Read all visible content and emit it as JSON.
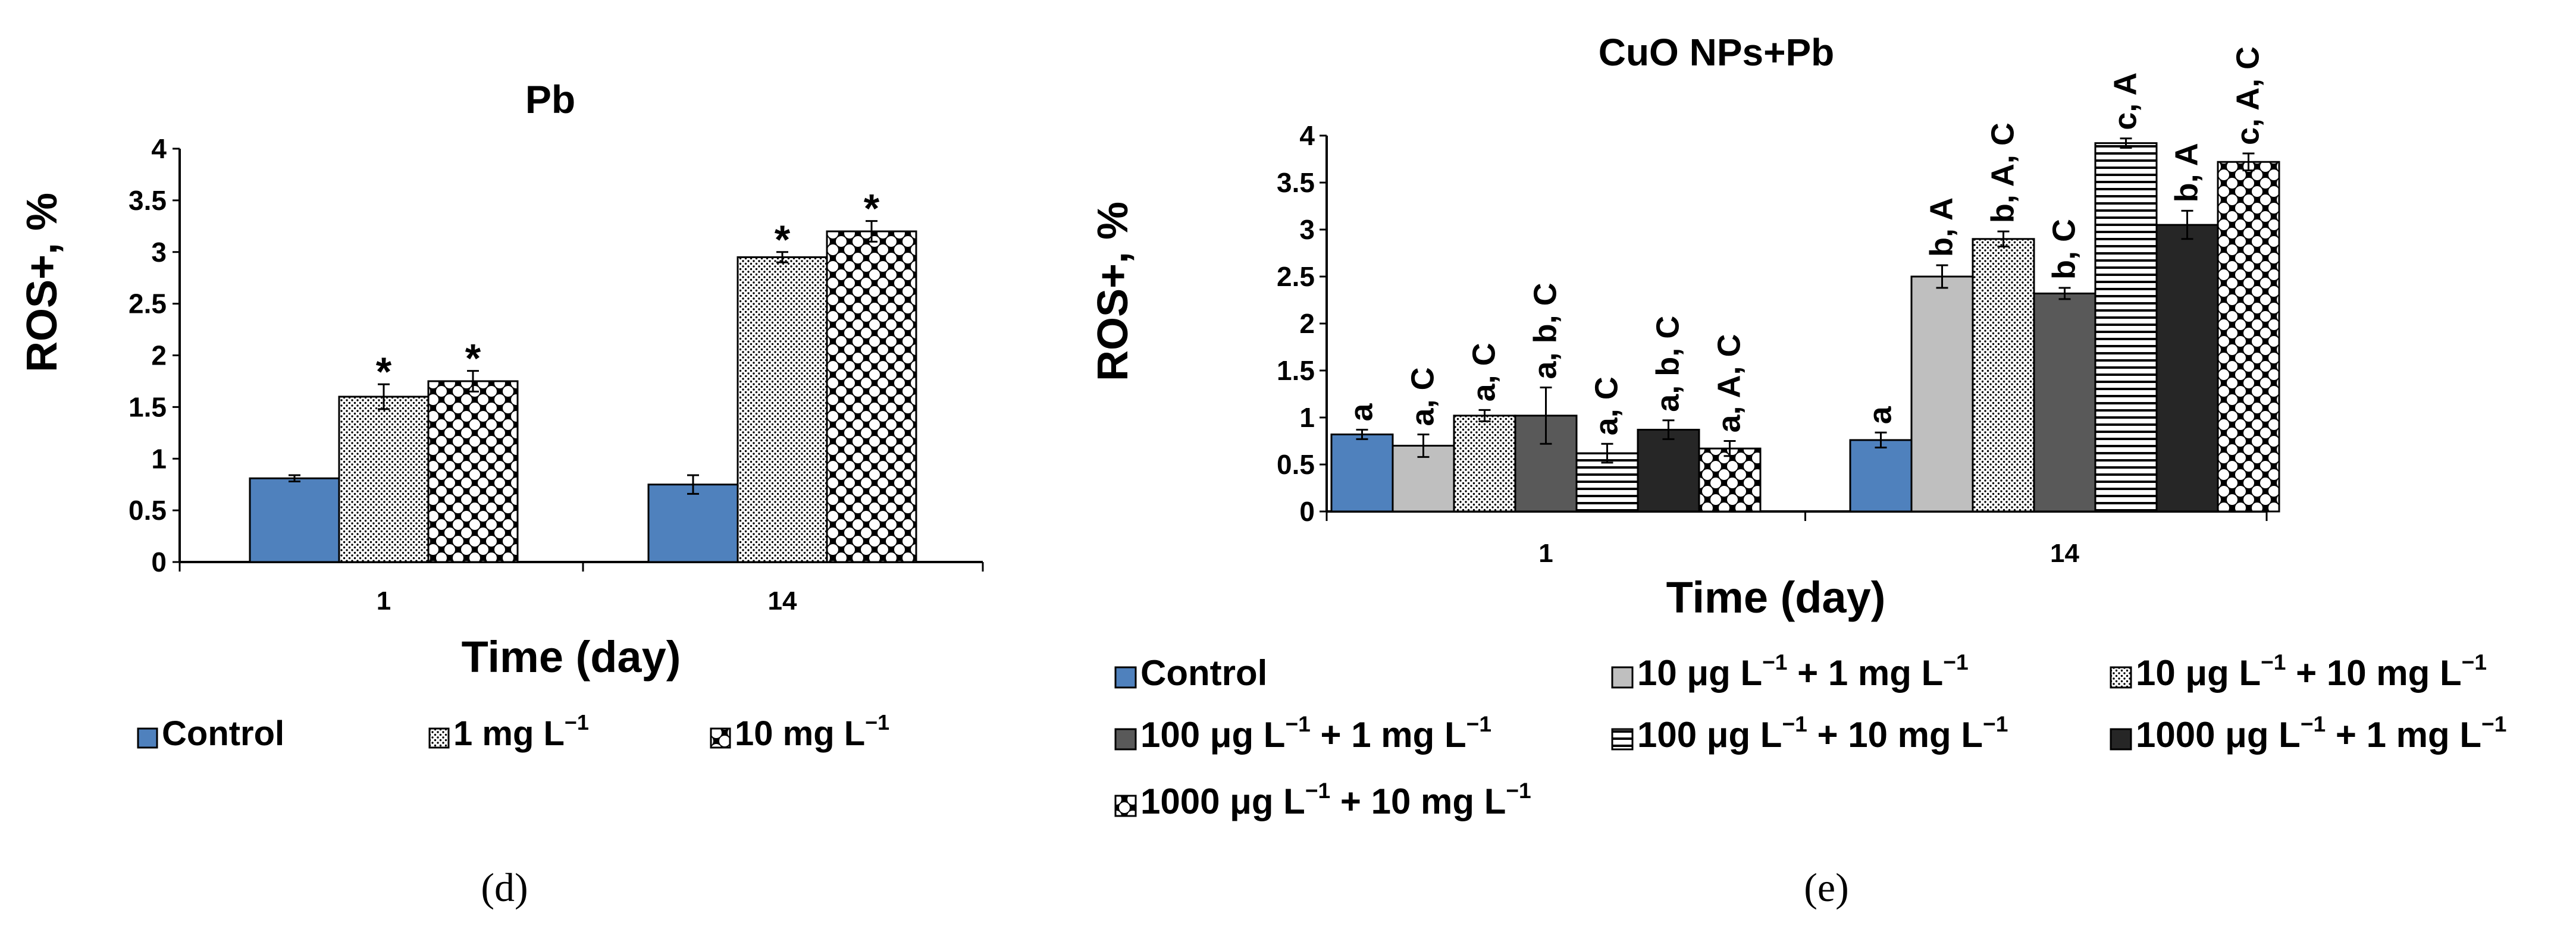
{
  "colors": {
    "control": "#4f81bd",
    "light_gray": "#bfbfbf",
    "dark_gray": "#595959",
    "black_bar": "#262626",
    "axis": "#000000"
  },
  "chart_data": [
    {
      "type": "bar",
      "panel_label": "(d)",
      "title": "Pb",
      "xlabel": "Time (day)",
      "ylabel": "ROS+, %",
      "categories": [
        "1",
        "14"
      ],
      "ylim": [
        0,
        4
      ],
      "yticks": [
        "0",
        "0.5",
        "1",
        "1.5",
        "2",
        "2.5",
        "3",
        "3.5",
        "4"
      ],
      "legend_position": "bottom",
      "series": [
        {
          "name": "Control",
          "pattern": "solid-blue",
          "values": [
            0.81,
            0.75
          ],
          "errors": [
            0.03,
            0.09
          ],
          "labels": [
            "",
            ""
          ]
        },
        {
          "name": "1 mg L",
          "superscript": "−1",
          "pattern": "dots",
          "values": [
            1.6,
            2.95
          ],
          "errors": [
            0.12,
            0.05
          ],
          "labels": [
            "*",
            "*"
          ]
        },
        {
          "name": "10 mg L",
          "superscript": "−1",
          "pattern": "checker",
          "values": [
            1.75,
            3.2
          ],
          "errors": [
            0.1,
            0.1
          ],
          "labels": [
            "*",
            "*"
          ]
        }
      ]
    },
    {
      "type": "bar",
      "panel_label": "(e)",
      "title": "CuO NPs+Pb",
      "xlabel": "Time (day)",
      "ylabel": "ROS+, %",
      "categories": [
        "1",
        "14"
      ],
      "ylim": [
        0,
        4
      ],
      "yticks": [
        "0",
        "0.5",
        "1",
        "1.5",
        "2",
        "2.5",
        "3",
        "3.5",
        "4"
      ],
      "legend_position": "bottom",
      "series": [
        {
          "name": "Control",
          "pattern": "solid-blue",
          "values": [
            0.82,
            0.76
          ],
          "errors": [
            0.05,
            0.08
          ],
          "labels": [
            "a",
            "a"
          ]
        },
        {
          "name": "10 μg L",
          "mid": "+ 1 mg L",
          "superscript": "−1",
          "pattern": "solid-lightgray",
          "values": [
            0.7,
            2.5
          ],
          "errors": [
            0.12,
            0.12
          ],
          "labels": [
            "a, C",
            "b, A"
          ]
        },
        {
          "name": "10 μg L",
          "mid": "+ 10 mg L",
          "superscript": "−1",
          "pattern": "dots",
          "values": [
            1.02,
            2.9
          ],
          "errors": [
            0.06,
            0.08
          ],
          "labels": [
            "a, C",
            "b, A, C"
          ]
        },
        {
          "name": "100 μg L",
          "mid": "+ 1 mg L",
          "superscript": "−1",
          "pattern": "solid-darkgray",
          "values": [
            1.02,
            2.32
          ],
          "errors": [
            0.3,
            0.06
          ],
          "labels": [
            "a, b, C",
            "b, C"
          ]
        },
        {
          "name": "100 μg L",
          "mid": "+ 10 mg L",
          "superscript": "−1",
          "pattern": "hlines",
          "values": [
            0.62,
            3.92
          ],
          "errors": [
            0.1,
            0.05
          ],
          "labels": [
            "a, C",
            "c, A"
          ]
        },
        {
          "name": "1000 μg L",
          "mid": "+ 1 mg L",
          "superscript": "−1",
          "pattern": "solid-black",
          "values": [
            0.87,
            3.05
          ],
          "errors": [
            0.1,
            0.15
          ],
          "labels": [
            "a, b, C",
            "b, A"
          ]
        },
        {
          "name": "1000 μg L",
          "mid": "+ 10 mg L",
          "superscript": "−1",
          "pattern": "checker",
          "values": [
            0.67,
            3.72
          ],
          "errors": [
            0.08,
            0.09
          ],
          "labels": [
            "a, A, C",
            "c, A, C"
          ]
        }
      ]
    }
  ]
}
